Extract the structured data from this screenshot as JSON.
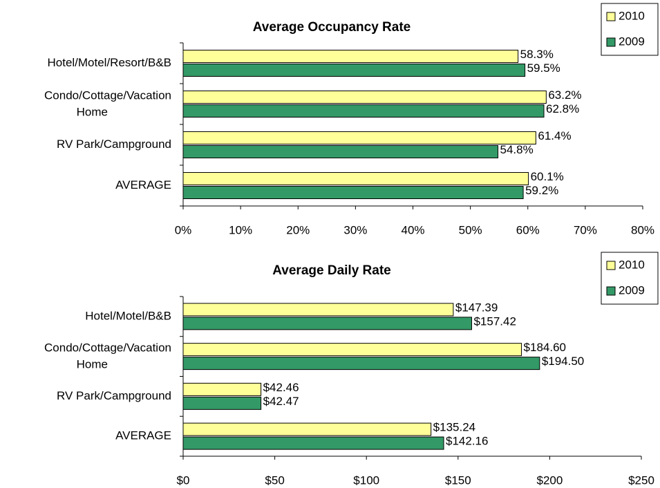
{
  "chart_data": [
    {
      "type": "bar",
      "orientation": "horizontal",
      "title": "Average Occupancy Rate",
      "categories": [
        "Hotel/Motel/Resort/B&B",
        "Condo/Cottage/Vacation Home",
        "RV Park/Campground",
        "AVERAGE"
      ],
      "series": [
        {
          "name": "2010",
          "color": "#ffff99",
          "values": [
            58.3,
            63.2,
            61.4,
            60.1
          ],
          "value_labels": [
            "58.3%",
            "63.2%",
            "61.4%",
            "60.1%"
          ]
        },
        {
          "name": "2009",
          "color": "#339966",
          "values": [
            59.5,
            62.8,
            54.8,
            59.2
          ],
          "value_labels": [
            "59.5%",
            "62.8%",
            "54.8%",
            "59.2%"
          ]
        }
      ],
      "xlim": [
        0,
        80
      ],
      "xticks": [
        {
          "value": 0,
          "label": "0%"
        },
        {
          "value": 10,
          "label": "10%"
        },
        {
          "value": 20,
          "label": "20%"
        },
        {
          "value": 30,
          "label": "30%"
        },
        {
          "value": 40,
          "label": "40%"
        },
        {
          "value": 50,
          "label": "50%"
        },
        {
          "value": 60,
          "label": "60%"
        },
        {
          "value": 70,
          "label": "70%"
        },
        {
          "value": 80,
          "label": "80%"
        }
      ],
      "legend": "upper right"
    },
    {
      "type": "bar",
      "orientation": "horizontal",
      "title": "Average Daily Rate",
      "categories": [
        "Hotel/Motel/B&B",
        "Condo/Cottage/Vacation Home",
        "RV Park/Campground",
        "AVERAGE"
      ],
      "series": [
        {
          "name": "2010",
          "color": "#ffff99",
          "values": [
            147.39,
            184.6,
            42.46,
            135.24
          ],
          "value_labels": [
            "$147.39",
            "$184.60",
            "$42.46",
            "$135.24"
          ]
        },
        {
          "name": "2009",
          "color": "#339966",
          "values": [
            157.42,
            194.5,
            42.47,
            142.16
          ],
          "value_labels": [
            "$157.42",
            "$194.50",
            "$42.47",
            "$142.16"
          ]
        }
      ],
      "xlim": [
        0,
        250
      ],
      "xticks": [
        {
          "value": 0,
          "label": "$0"
        },
        {
          "value": 50,
          "label": "$50"
        },
        {
          "value": 100,
          "label": "$100"
        },
        {
          "value": 150,
          "label": "$150"
        },
        {
          "value": 200,
          "label": "$200"
        },
        {
          "value": 250,
          "label": "$250"
        }
      ],
      "legend": "upper right"
    }
  ]
}
